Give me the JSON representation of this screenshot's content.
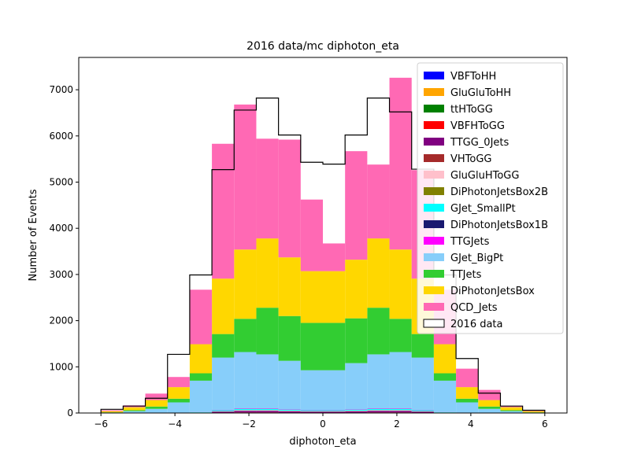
{
  "chart_data": {
    "type": "histogram-stacked",
    "title": "2016 data/mc diphoton_eta",
    "xlabel": "diphoton_eta",
    "ylabel": "Number of Events",
    "xlim": [
      -6.6,
      6.6
    ],
    "ylim": [
      0,
      7700
    ],
    "xticks": [
      -6,
      -4,
      -2,
      0,
      2,
      4,
      6
    ],
    "xtick_labels": [
      "−6",
      "−4",
      "−2",
      "0",
      "2",
      "4",
      "6"
    ],
    "yticks": [
      0,
      1000,
      2000,
      3000,
      4000,
      5000,
      6000,
      7000
    ],
    "ytick_labels": [
      "0",
      "1000",
      "2000",
      "3000",
      "4000",
      "5000",
      "6000",
      "7000"
    ],
    "legend_position": "upper right",
    "bin_edges": [
      -6.0,
      -5.4,
      -4.8,
      -4.2,
      -3.6,
      -3.0,
      -2.4,
      -1.8,
      -1.2,
      -0.6,
      0.0,
      0.6,
      1.2,
      1.8,
      2.4,
      3.0,
      3.6,
      4.2,
      4.8,
      5.4,
      6.0
    ],
    "series": [
      {
        "name": "VBFToHH",
        "color": "#0000ff",
        "values": [
          0,
          0,
          0,
          0,
          0,
          0,
          0,
          0,
          0,
          0,
          0,
          0,
          0,
          0,
          0,
          0,
          0,
          0,
          0,
          0
        ]
      },
      {
        "name": "GluGluToHH",
        "color": "#ffa500",
        "values": [
          0,
          0,
          0,
          0,
          0,
          0,
          0,
          0,
          0,
          0,
          0,
          0,
          0,
          0,
          0,
          0,
          0,
          0,
          0,
          0
        ]
      },
      {
        "name": "ttHToGG",
        "color": "#008000",
        "values": [
          0,
          0,
          0,
          0,
          2,
          5,
          8,
          8,
          6,
          5,
          5,
          6,
          8,
          8,
          5,
          2,
          0,
          0,
          0,
          0
        ]
      },
      {
        "name": "VBFHToGG",
        "color": "#ff0000",
        "values": [
          0,
          0,
          0,
          0,
          1,
          3,
          5,
          5,
          4,
          3,
          3,
          4,
          5,
          5,
          3,
          1,
          0,
          0,
          0,
          0
        ]
      },
      {
        "name": "TTGG_0Jets",
        "color": "#800080",
        "values": [
          0,
          0,
          0,
          0,
          5,
          20,
          30,
          30,
          25,
          20,
          20,
          25,
          30,
          30,
          20,
          5,
          0,
          0,
          0,
          0
        ]
      },
      {
        "name": "VHToGG",
        "color": "#a52a2a",
        "values": [
          0,
          0,
          0,
          0,
          1,
          3,
          4,
          4,
          3,
          3,
          3,
          3,
          4,
          4,
          3,
          1,
          0,
          0,
          0,
          0
        ]
      },
      {
        "name": "GluGluHToGG",
        "color": "#ffc0cb",
        "values": [
          0,
          0,
          0,
          0,
          3,
          8,
          12,
          12,
          10,
          9,
          9,
          10,
          12,
          12,
          8,
          3,
          0,
          0,
          0,
          0
        ]
      },
      {
        "name": "DiPhotonJetsBox2B",
        "color": "#808000",
        "values": [
          0,
          0,
          0,
          0,
          0,
          2,
          3,
          3,
          2,
          2,
          2,
          2,
          3,
          3,
          2,
          0,
          0,
          0,
          0,
          0
        ]
      },
      {
        "name": "GJet_SmallPt",
        "color": "#00ffff",
        "values": [
          0,
          0,
          0,
          0,
          5,
          20,
          25,
          25,
          20,
          18,
          18,
          20,
          25,
          25,
          20,
          5,
          0,
          0,
          0,
          0
        ]
      },
      {
        "name": "DiPhotonJetsBox1B",
        "color": "#191970",
        "values": [
          0,
          0,
          0,
          0,
          1,
          3,
          4,
          4,
          3,
          3,
          3,
          3,
          4,
          4,
          3,
          1,
          0,
          0,
          0,
          0
        ]
      },
      {
        "name": "TTGJets",
        "color": "#ff00ff",
        "values": [
          0,
          0,
          0,
          0,
          2,
          6,
          8,
          8,
          7,
          6,
          6,
          7,
          8,
          8,
          6,
          2,
          0,
          0,
          0,
          0
        ]
      },
      {
        "name": "GJet_BigPt",
        "color": "#87cefa",
        "values": [
          10,
          40,
          90,
          230,
          680,
          1130,
          1221,
          1171,
          1050,
          857,
          857,
          1000,
          1171,
          1221,
          1130,
          680,
          230,
          90,
          40,
          10
        ]
      },
      {
        "name": "TTJets",
        "color": "#32cd32",
        "values": [
          5,
          20,
          50,
          80,
          160,
          510,
          720,
          1010,
          970,
          1026,
          1026,
          970,
          1010,
          720,
          510,
          160,
          80,
          50,
          20,
          5
        ]
      },
      {
        "name": "DiPhotonJetsBox",
        "color": "#ffd700",
        "values": [
          25,
          65,
          140,
          250,
          630,
          1200,
          1500,
          1500,
          1270,
          1120,
          1120,
          1270,
          1500,
          1500,
          1200,
          630,
          250,
          140,
          65,
          25
        ]
      },
      {
        "name": "QCD_Jets",
        "color": "#ff69b4",
        "values": [
          20,
          40,
          140,
          220,
          1180,
          2920,
          3140,
          2160,
          2550,
          1550,
          600,
          2350,
          1600,
          3720,
          2350,
          1180,
          400,
          220,
          20,
          20
        ]
      }
    ],
    "data": {
      "name": "2016 data",
      "color": "#000000",
      "values": [
        80,
        150,
        320,
        1270,
        2990,
        5270,
        6560,
        6820,
        6020,
        5430,
        5390,
        6020,
        6820,
        6520,
        5280,
        2990,
        1180,
        430,
        150,
        60
      ]
    }
  }
}
